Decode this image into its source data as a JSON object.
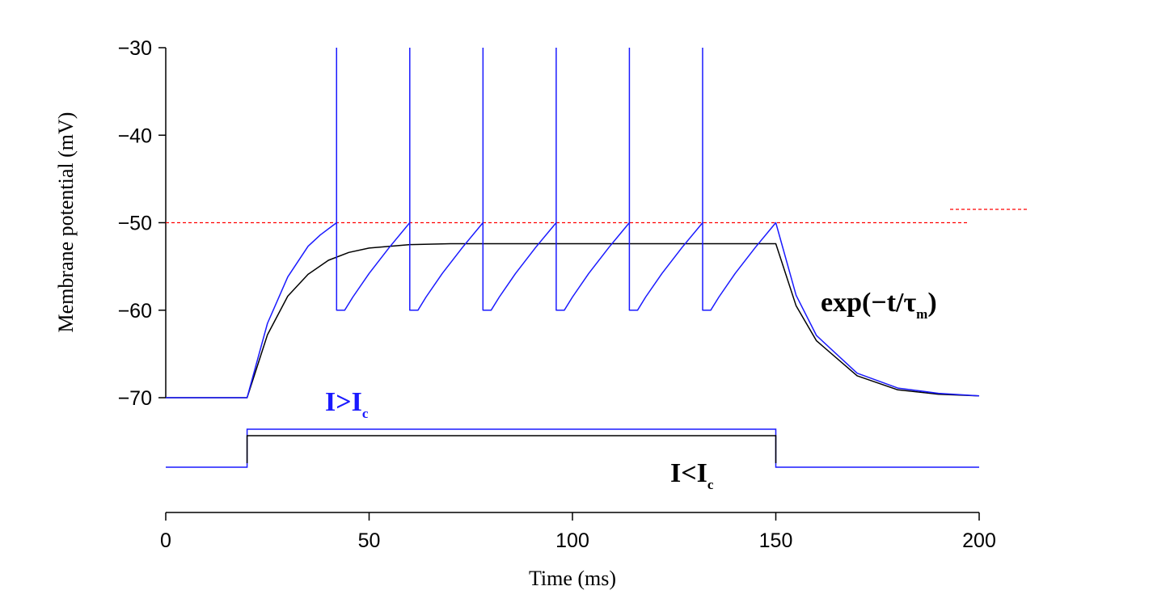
{
  "chart_data": {
    "type": "line",
    "title": "",
    "xlabel": "Time (ms)",
    "ylabel": "Membrane potential (mV)",
    "xlim": [
      0,
      200
    ],
    "ylim": [
      -70,
      -30
    ],
    "x_ticks": [
      0,
      50,
      100,
      150,
      200
    ],
    "x_tick_labels": [
      "0",
      "50",
      "100",
      "150",
      "200"
    ],
    "y_ticks": [
      -30,
      -40,
      -50,
      -60,
      -70
    ],
    "y_tick_labels": [
      "−30",
      "−40",
      "−50",
      "−60",
      "−70"
    ],
    "grid": false,
    "colors": {
      "supra": "#1a1aff",
      "sub": "#000000",
      "threshold": "#ff0000"
    },
    "threshold": {
      "value": -50,
      "style": "dashed"
    },
    "series": [
      {
        "name": "I>I_c",
        "x": [
          0,
          20,
          25,
          30,
          35,
          38,
          42,
          42,
          44,
          46,
          50,
          55,
          60,
          60,
          62,
          64,
          68,
          73,
          78,
          78,
          80,
          82,
          86,
          91,
          96,
          96,
          98,
          100,
          104,
          109,
          114,
          114,
          116,
          118,
          122,
          127,
          132,
          132,
          134,
          136,
          140,
          145,
          150,
          155,
          160,
          170,
          180,
          190,
          200
        ],
        "y": [
          -70,
          -70,
          -61.5,
          -56.2,
          -52.7,
          -51.4,
          -50,
          -60,
          -60,
          -58.5,
          -55.8,
          -52.8,
          -50,
          -60,
          -60,
          -58.5,
          -55.8,
          -52.8,
          -50,
          -60,
          -60,
          -58.5,
          -55.8,
          -52.8,
          -50,
          -60,
          -60,
          -58.5,
          -55.8,
          -52.8,
          -50,
          -60,
          -60,
          -58.5,
          -55.8,
          -52.8,
          -50,
          -60,
          -60,
          -58.5,
          -55.8,
          -52.8,
          -50,
          -58.3,
          -62.9,
          -67.2,
          -68.9,
          -69.5,
          -69.8
        ]
      },
      {
        "name": "I<I_c",
        "x": [
          0,
          20,
          25,
          30,
          35,
          40,
          45,
          50,
          60,
          70,
          80,
          150,
          155,
          160,
          170,
          180,
          190,
          200
        ],
        "y": [
          -70,
          -70,
          -62.8,
          -58.4,
          -55.9,
          -54.3,
          -53.4,
          -52.9,
          -52.5,
          -52.4,
          -52.4,
          -52.4,
          -59.5,
          -63.5,
          -67.5,
          -69.1,
          -69.6,
          -69.8
        ]
      }
    ],
    "spike_peaks": [
      42,
      60,
      78,
      96,
      114,
      132
    ],
    "spike_peak_value": -30,
    "current_steps": [
      {
        "name": "I>I_c",
        "t_on": 20,
        "t_off": 150,
        "level": 1.0
      },
      {
        "name": "I<I_c",
        "t_on": 20,
        "t_off": 150,
        "level": 0.83
      }
    ],
    "annotations": {
      "supra_main": "I>I",
      "supra_sub": "c",
      "sub_main": "I<I",
      "sub_sub": "c",
      "decay_main": "exp(−t/τ",
      "decay_sub": "m",
      "decay_close": ")"
    }
  }
}
